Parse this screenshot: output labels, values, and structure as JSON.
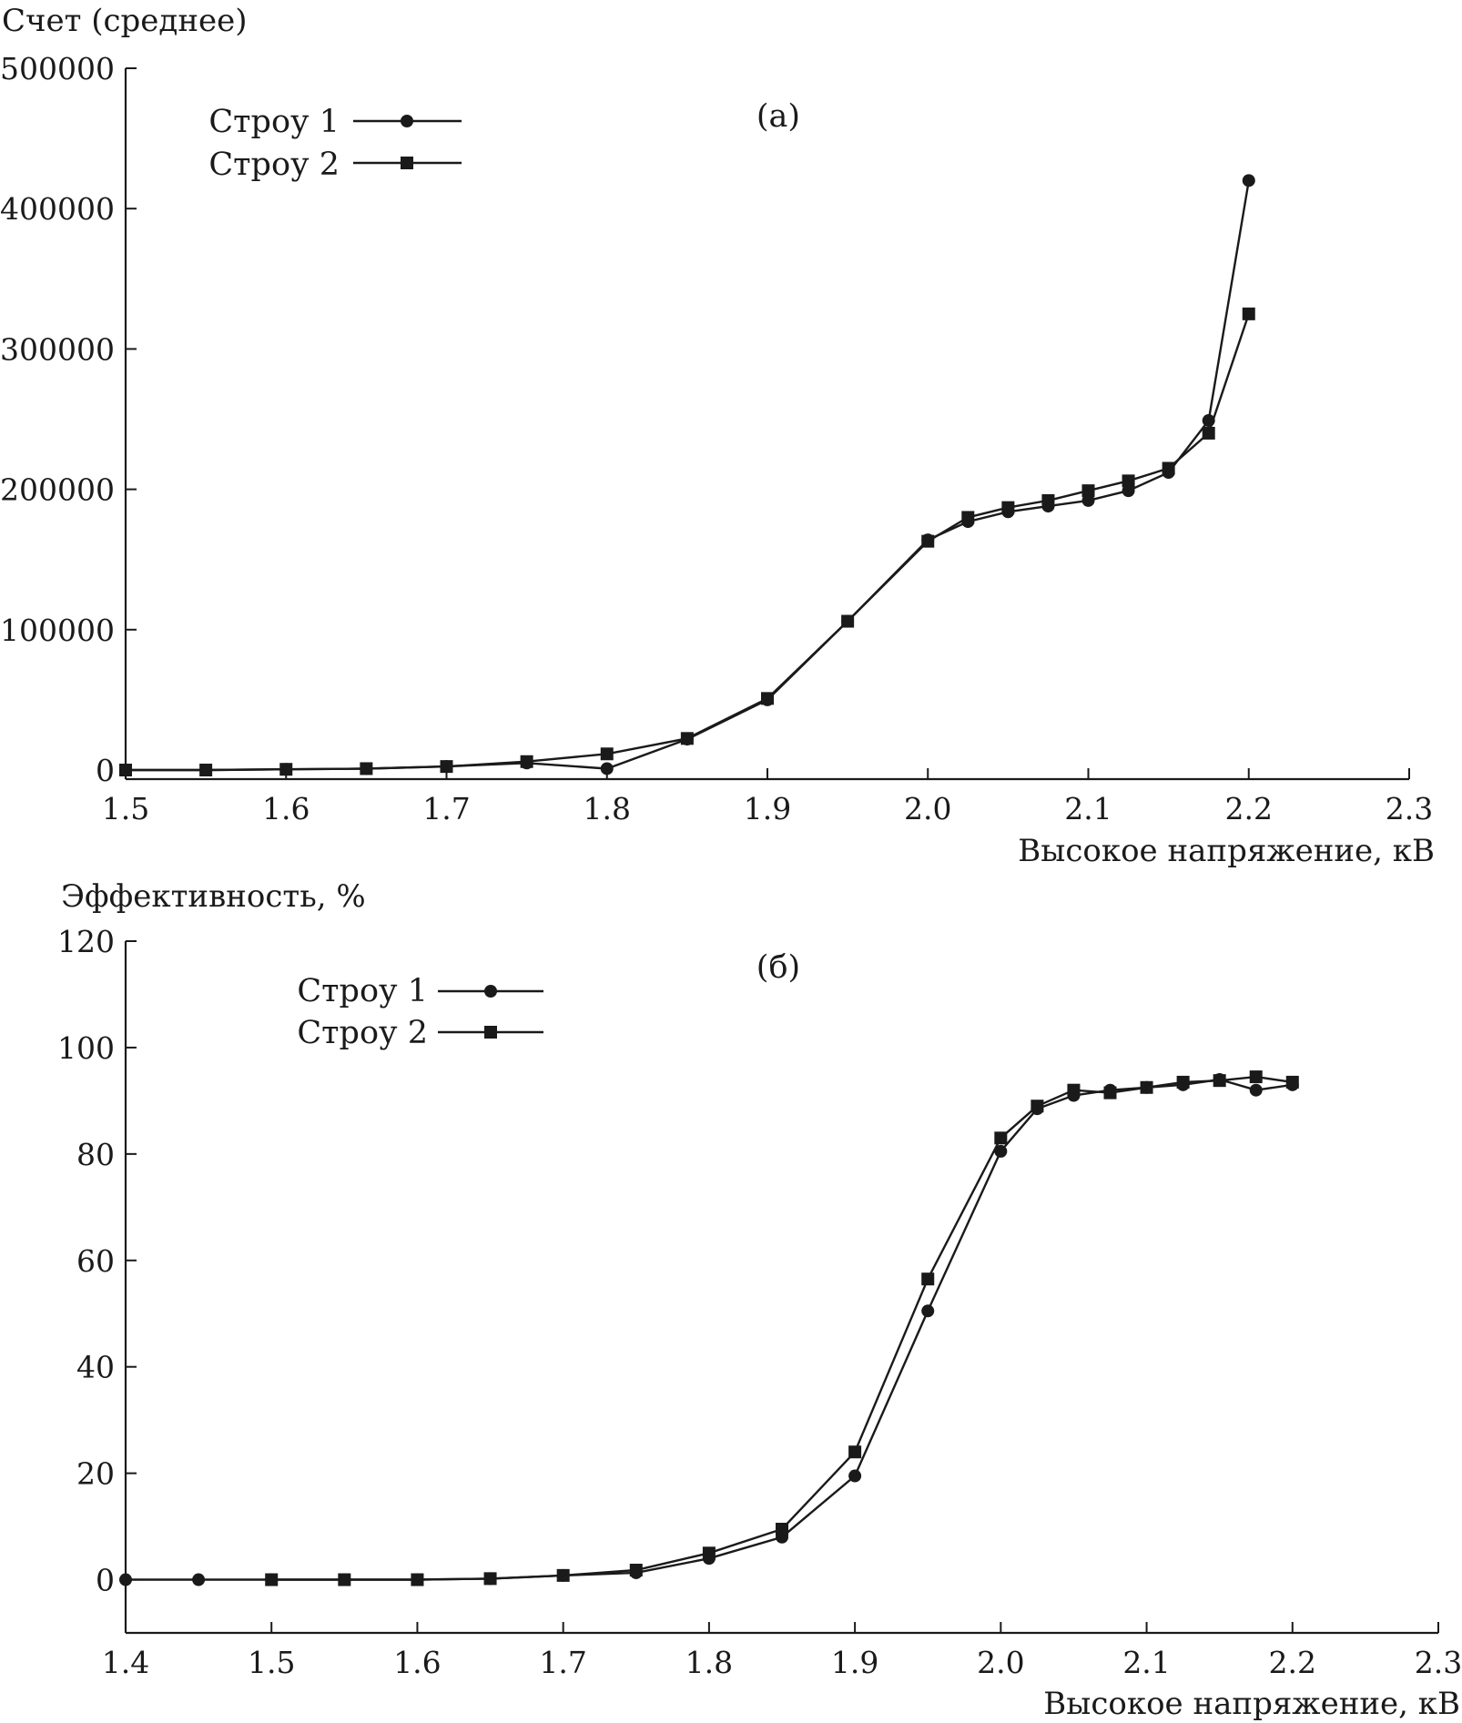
{
  "chart_data": [
    {
      "id": "a",
      "type": "line",
      "panel_label": "(а)",
      "title": "",
      "ylabel": "Счет (среднее)",
      "xlabel": "Высокое напряжение, кВ",
      "xlim": [
        1.5,
        2.3
      ],
      "ylim": [
        0,
        500000
      ],
      "xticks": [
        "1.5",
        "1.6",
        "1.7",
        "1.8",
        "1.9",
        "2.0",
        "2.1",
        "2.2",
        "2.3"
      ],
      "yticks": [
        "0",
        "100000",
        "200000",
        "300000",
        "400000",
        "500000"
      ],
      "grid": false,
      "legend_position": "top-left",
      "series": [
        {
          "name": "Строу 1",
          "marker": "circle",
          "x": [
            1.5,
            1.55,
            1.6,
            1.65,
            1.7,
            1.75,
            1.8,
            1.85,
            1.9,
            1.95,
            2.0,
            2.025,
            2.05,
            2.075,
            2.1,
            2.125,
            2.15,
            2.175,
            2.2
          ],
          "values": [
            0,
            0,
            500,
            1000,
            2500,
            5000,
            1000,
            22000,
            50000,
            106000,
            164000,
            177000,
            184000,
            188000,
            192000,
            199000,
            212000,
            249000,
            420000
          ]
        },
        {
          "name": "Строу 2",
          "marker": "square",
          "x": [
            1.5,
            1.55,
            1.6,
            1.65,
            1.7,
            1.75,
            1.8,
            1.85,
            1.9,
            1.95,
            2.0,
            2.025,
            2.05,
            2.075,
            2.1,
            2.125,
            2.15,
            2.175,
            2.2
          ],
          "values": [
            0,
            0,
            500,
            1000,
            2500,
            6000,
            11500,
            22500,
            51000,
            106000,
            163000,
            180000,
            187000,
            192000,
            199000,
            206000,
            215000,
            240000,
            325000
          ]
        }
      ]
    },
    {
      "id": "b",
      "type": "line",
      "panel_label": "(б)",
      "title": "",
      "ylabel": "Эффективность, %",
      "xlabel": "Высокое напряжение, кВ",
      "xlim": [
        1.4,
        2.3
      ],
      "ylim": [
        -10,
        120
      ],
      "xticks": [
        "1.4",
        "1.5",
        "1.6",
        "1.7",
        "1.8",
        "1.9",
        "2.0",
        "2.1",
        "2.2",
        "2.3"
      ],
      "yticks": [
        "0",
        "20",
        "40",
        "60",
        "80",
        "100",
        "120"
      ],
      "grid": false,
      "legend_position": "top-left",
      "series": [
        {
          "name": "Строу 1",
          "marker": "circle",
          "x": [
            1.4,
            1.45,
            1.5,
            1.55,
            1.6,
            1.65,
            1.7,
            1.75,
            1.8,
            1.85,
            1.9,
            1.95,
            2.0,
            2.025,
            2.05,
            2.075,
            2.1,
            2.125,
            2.15,
            2.175,
            2.2
          ],
          "values": [
            0,
            0,
            0,
            0,
            0,
            0.2,
            0.8,
            1.3,
            4,
            8,
            19.5,
            50.5,
            80.5,
            88.5,
            91,
            92,
            92.5,
            93,
            94,
            92,
            93
          ]
        },
        {
          "name": "Строу 2",
          "marker": "square",
          "x": [
            1.5,
            1.55,
            1.6,
            1.65,
            1.7,
            1.75,
            1.8,
            1.85,
            1.9,
            1.95,
            2.0,
            2.025,
            2.05,
            2.075,
            2.1,
            2.125,
            2.15,
            2.175,
            2.2
          ],
          "values": [
            0,
            0,
            0,
            0.2,
            0.8,
            1.8,
            5,
            9.5,
            24,
            56.5,
            83,
            89,
            92,
            91.5,
            92.5,
            93.5,
            93.8,
            94.5,
            93.5
          ]
        }
      ]
    }
  ]
}
